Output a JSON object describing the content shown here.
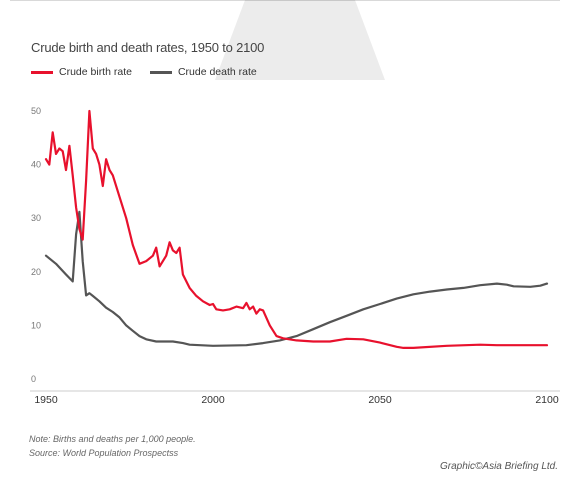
{
  "chart_data": {
    "type": "line",
    "title": "Crude birth and death rates, 1950 to 2100",
    "xlabel": "",
    "ylabel": "",
    "xlim": [
      1950,
      2100
    ],
    "ylim": [
      0,
      52
    ],
    "x_ticks": [
      1950,
      2000,
      2050,
      2100
    ],
    "y_ticks": [
      0,
      10,
      20,
      30,
      40,
      50
    ],
    "grid": false,
    "legend_position": "top-left",
    "series": [
      {
        "name": "Crude birth rate",
        "color": "#e8112d",
        "points": [
          [
            1950,
            41
          ],
          [
            1951,
            40
          ],
          [
            1952,
            46
          ],
          [
            1953,
            42
          ],
          [
            1954,
            43
          ],
          [
            1955,
            42.5
          ],
          [
            1956,
            39
          ],
          [
            1957,
            43.5
          ],
          [
            1958,
            38
          ],
          [
            1959,
            32
          ],
          [
            1960,
            28
          ],
          [
            1961,
            26
          ],
          [
            1962,
            37
          ],
          [
            1963,
            50
          ],
          [
            1964,
            43
          ],
          [
            1965,
            42
          ],
          [
            1966,
            40
          ],
          [
            1967,
            36
          ],
          [
            1968,
            41
          ],
          [
            1969,
            39
          ],
          [
            1970,
            38
          ],
          [
            1972,
            34
          ],
          [
            1974,
            30
          ],
          [
            1976,
            25
          ],
          [
            1978,
            21.5
          ],
          [
            1980,
            22
          ],
          [
            1982,
            23
          ],
          [
            1983,
            24.5
          ],
          [
            1984,
            21
          ],
          [
            1985,
            22
          ],
          [
            1986,
            23
          ],
          [
            1987,
            25.5
          ],
          [
            1988,
            24
          ],
          [
            1989,
            23.5
          ],
          [
            1990,
            24.5
          ],
          [
            1991,
            19.5
          ],
          [
            1993,
            17
          ],
          [
            1995,
            15.5
          ],
          [
            1997,
            14.5
          ],
          [
            1999,
            13.8
          ],
          [
            2000,
            14
          ],
          [
            2001,
            13
          ],
          [
            2003,
            12.8
          ],
          [
            2005,
            13
          ],
          [
            2007,
            13.5
          ],
          [
            2009,
            13.2
          ],
          [
            2010,
            14.2
          ],
          [
            2011,
            13
          ],
          [
            2012,
            13.5
          ],
          [
            2013,
            12.2
          ],
          [
            2014,
            13
          ],
          [
            2015,
            12.8
          ],
          [
            2017,
            10
          ],
          [
            2019,
            8
          ],
          [
            2021,
            7.6
          ],
          [
            2025,
            7.2
          ],
          [
            2030,
            7
          ],
          [
            2035,
            7
          ],
          [
            2040,
            7.5
          ],
          [
            2045,
            7.4
          ],
          [
            2050,
            6.8
          ],
          [
            2055,
            6
          ],
          [
            2057,
            5.8
          ],
          [
            2060,
            5.8
          ],
          [
            2070,
            6.2
          ],
          [
            2080,
            6.4
          ],
          [
            2085,
            6.3
          ],
          [
            2090,
            6.3
          ],
          [
            2100,
            6.3
          ]
        ]
      },
      {
        "name": "Crude death rate",
        "color": "#555555",
        "points": [
          [
            1950,
            23
          ],
          [
            1953,
            21.5
          ],
          [
            1956,
            19.5
          ],
          [
            1958,
            18.2
          ],
          [
            1959,
            27
          ],
          [
            1960,
            31.2
          ],
          [
            1961,
            22
          ],
          [
            1962,
            15.6
          ],
          [
            1963,
            16
          ],
          [
            1964,
            15.5
          ],
          [
            1966,
            14.5
          ],
          [
            1968,
            13.3
          ],
          [
            1970,
            12.5
          ],
          [
            1972,
            11.5
          ],
          [
            1974,
            10
          ],
          [
            1976,
            9
          ],
          [
            1978,
            8
          ],
          [
            1980,
            7.4
          ],
          [
            1983,
            7
          ],
          [
            1988,
            7
          ],
          [
            1991,
            6.7
          ],
          [
            1993,
            6.4
          ],
          [
            2000,
            6.2
          ],
          [
            2010,
            6.3
          ],
          [
            2015,
            6.7
          ],
          [
            2020,
            7.2
          ],
          [
            2025,
            8
          ],
          [
            2030,
            9.3
          ],
          [
            2035,
            10.6
          ],
          [
            2040,
            11.8
          ],
          [
            2045,
            13
          ],
          [
            2050,
            14
          ],
          [
            2055,
            15
          ],
          [
            2060,
            15.8
          ],
          [
            2065,
            16.3
          ],
          [
            2070,
            16.7
          ],
          [
            2075,
            17
          ],
          [
            2080,
            17.5
          ],
          [
            2085,
            17.8
          ],
          [
            2088,
            17.6
          ],
          [
            2090,
            17.3
          ],
          [
            2095,
            17.2
          ],
          [
            2098,
            17.4
          ],
          [
            2100,
            17.8
          ]
        ]
      }
    ],
    "notes": [
      "Note: Births and deaths per 1,000 people.",
      "Source: World Population Prospectss"
    ],
    "credit": "Graphic©Asia Briefing Ltd."
  }
}
